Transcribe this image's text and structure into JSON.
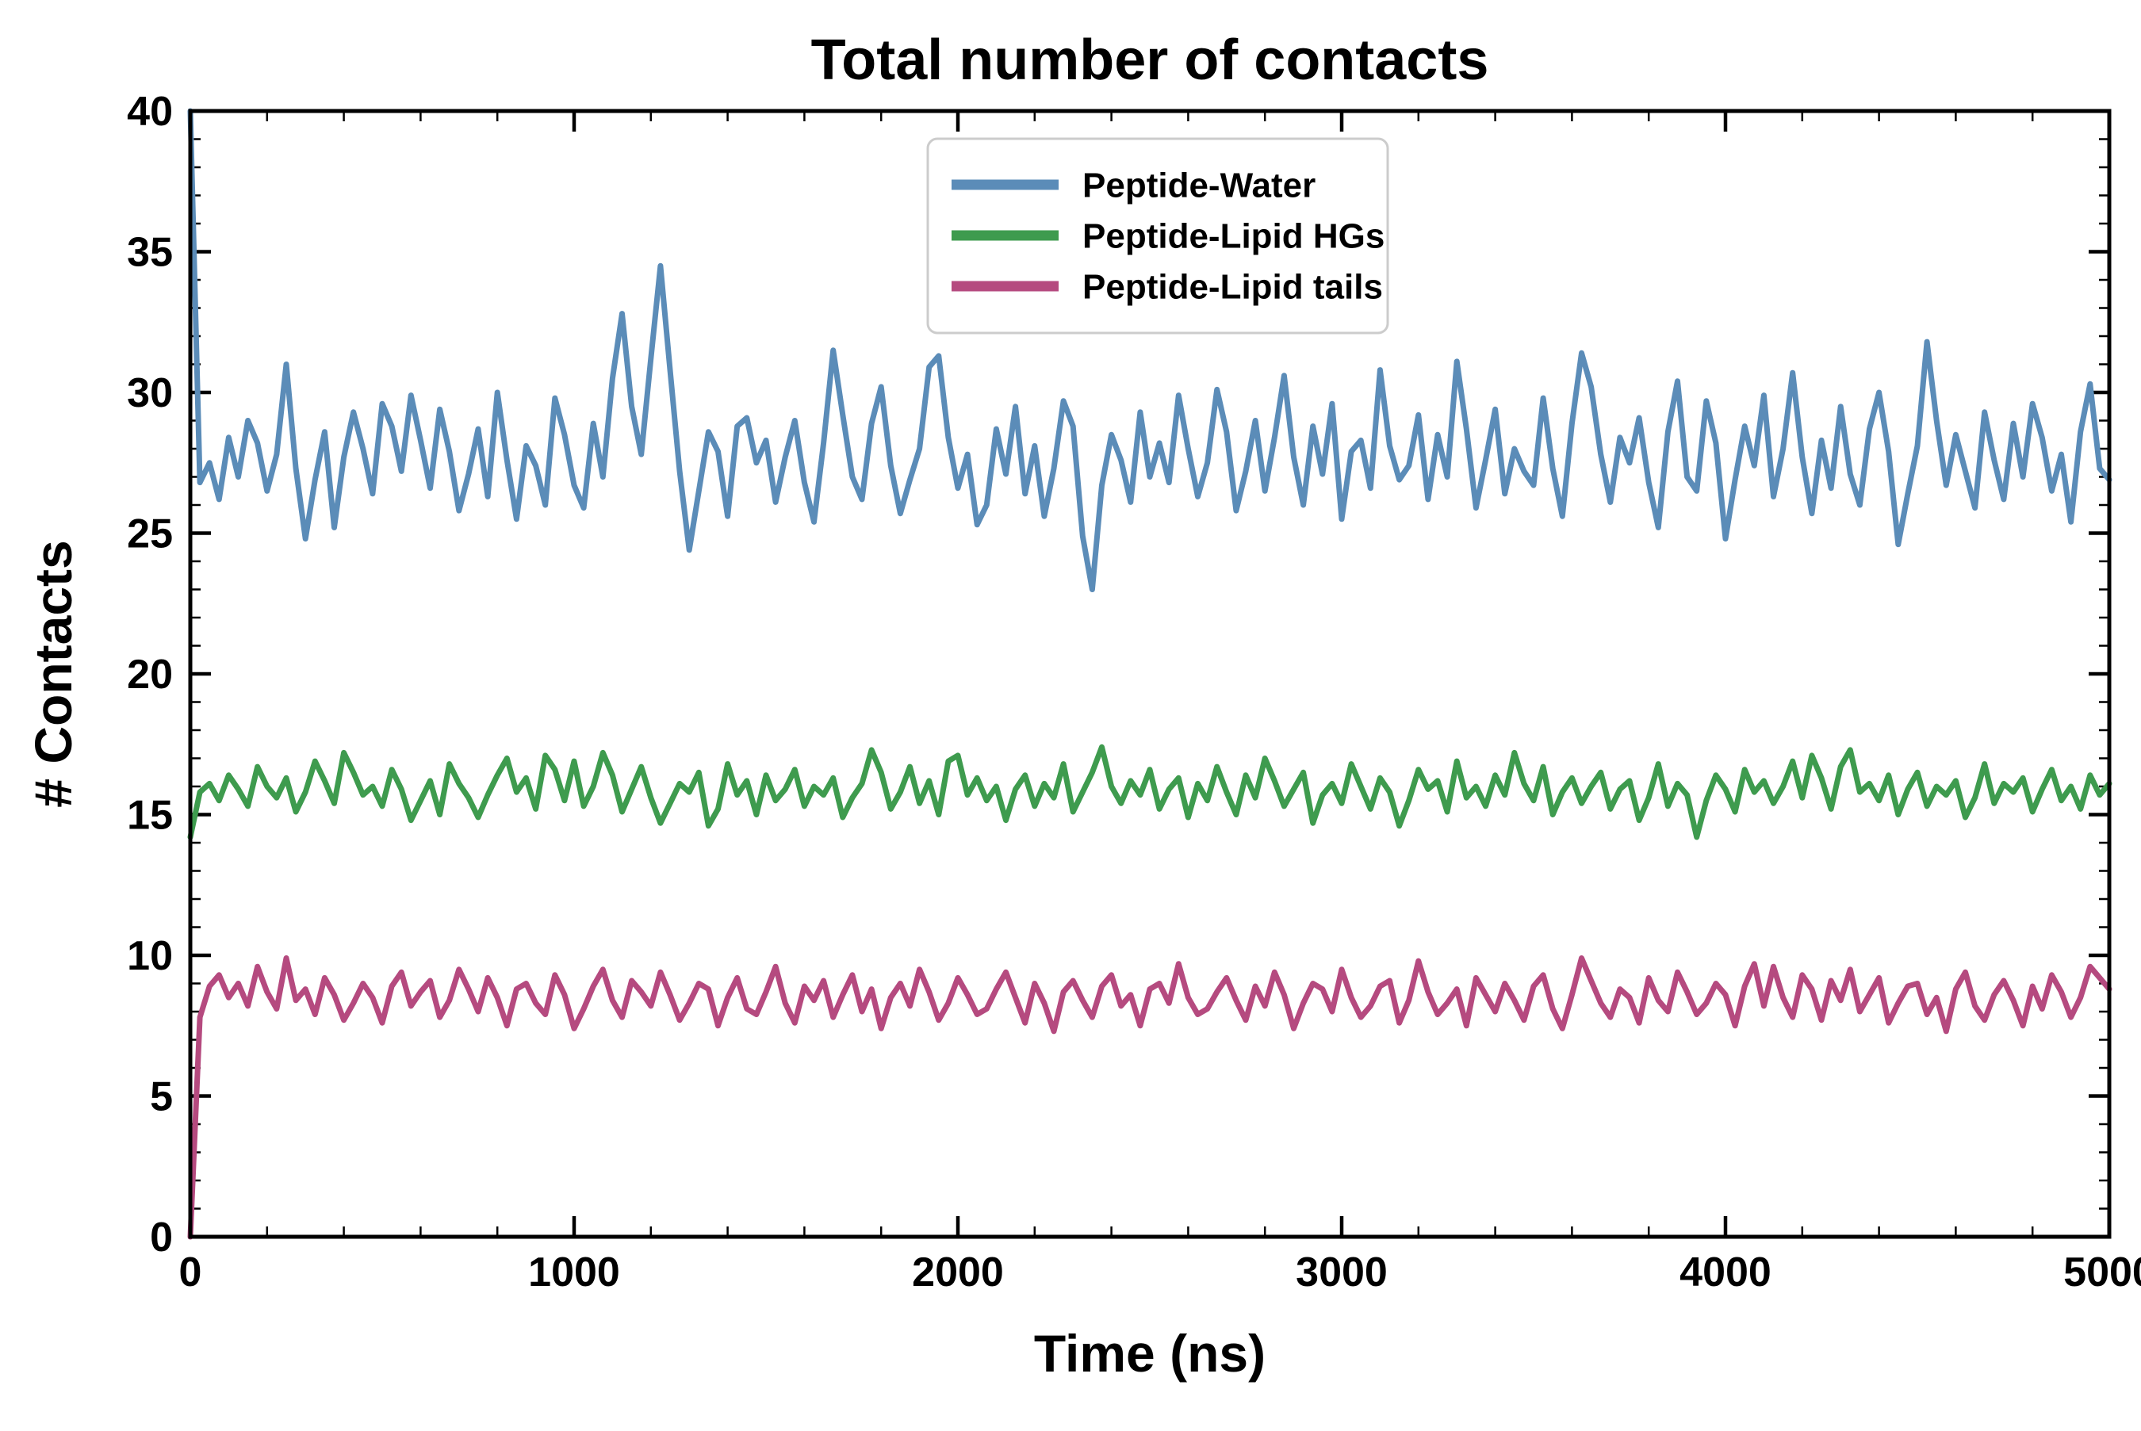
{
  "chart_data": {
    "type": "line",
    "title": "Total number of contacts",
    "xlabel": "Time (ns)",
    "ylabel": "# Contacts",
    "xlim": [
      0,
      5000
    ],
    "ylim": [
      0,
      40
    ],
    "x_major_ticks": [
      0,
      1000,
      2000,
      3000,
      4000,
      5000
    ],
    "y_major_ticks": [
      0,
      5,
      10,
      15,
      20,
      25,
      30,
      35,
      40
    ],
    "x_minor_step": 200,
    "y_minor_step": 1,
    "grid": false,
    "legend_position": "upper center",
    "x_step": 25,
    "series": [
      {
        "name": "Peptide-Water",
        "color": "#5b8cb8",
        "values": [
          40.0,
          26.8,
          27.5,
          26.2,
          28.4,
          27.0,
          29.0,
          28.2,
          26.5,
          27.8,
          31.0,
          27.3,
          24.8,
          26.9,
          28.6,
          25.2,
          27.7,
          29.3,
          28.0,
          26.4,
          29.6,
          28.8,
          27.2,
          29.9,
          28.3,
          26.6,
          29.4,
          27.9,
          25.8,
          27.1,
          28.7,
          26.3,
          30.0,
          27.6,
          25.5,
          28.1,
          27.4,
          26.0,
          29.8,
          28.5,
          26.7,
          25.9,
          28.9,
          27.0,
          30.5,
          32.8,
          29.5,
          27.8,
          31.2,
          34.5,
          30.8,
          27.2,
          24.4,
          26.5,
          28.6,
          27.9,
          25.6,
          28.8,
          29.1,
          27.5,
          28.3,
          26.1,
          27.7,
          29.0,
          26.8,
          25.4,
          28.2,
          31.5,
          29.2,
          27.0,
          26.2,
          28.9,
          30.2,
          27.4,
          25.7,
          26.9,
          28.0,
          30.9,
          31.3,
          28.4,
          26.6,
          27.8,
          25.3,
          26.0,
          28.7,
          27.1,
          29.5,
          26.4,
          28.1,
          25.6,
          27.3,
          29.7,
          28.8,
          24.9,
          23.0,
          26.7,
          28.5,
          27.6,
          26.1,
          29.3,
          27.0,
          28.2,
          26.8,
          29.9,
          28.0,
          26.3,
          27.5,
          30.1,
          28.6,
          25.8,
          27.2,
          29.0,
          26.5,
          28.4,
          30.6,
          27.7,
          26.0,
          28.8,
          27.1,
          29.6,
          25.5,
          27.9,
          28.3,
          26.6,
          30.8,
          28.1,
          26.9,
          27.4,
          29.2,
          26.2,
          28.5,
          27.0,
          31.1,
          28.7,
          25.9,
          27.6,
          29.4,
          26.4,
          28.0,
          27.2,
          26.7,
          29.8,
          27.3,
          25.6,
          28.9,
          31.4,
          30.2,
          27.8,
          26.1,
          28.4,
          27.5,
          29.1,
          26.8,
          25.2,
          28.6,
          30.4,
          27.0,
          26.5,
          29.7,
          28.2,
          24.8,
          26.9,
          28.8,
          27.4,
          29.9,
          26.3,
          28.0,
          30.7,
          27.7,
          25.7,
          28.3,
          26.6,
          29.5,
          27.1,
          26.0,
          28.7,
          30.0,
          27.9,
          24.6,
          26.4,
          28.1,
          31.8,
          29.0,
          26.7,
          28.5,
          27.2,
          25.9,
          29.3,
          27.6,
          26.2,
          28.9,
          27.0,
          29.6,
          28.4,
          26.5,
          27.8,
          25.4,
          28.6,
          30.3,
          27.3,
          26.9
        ]
      },
      {
        "name": "Peptide-Lipid HGs",
        "color": "#3e9b4e",
        "values": [
          14.2,
          15.8,
          16.1,
          15.5,
          16.4,
          15.9,
          15.3,
          16.7,
          16.0,
          15.6,
          16.3,
          15.1,
          15.8,
          16.9,
          16.2,
          15.4,
          17.2,
          16.5,
          15.7,
          16.0,
          15.3,
          16.6,
          15.9,
          14.8,
          15.5,
          16.2,
          15.0,
          16.8,
          16.1,
          15.6,
          14.9,
          15.7,
          16.4,
          17.0,
          15.8,
          16.3,
          15.2,
          17.1,
          16.6,
          15.5,
          16.9,
          15.3,
          16.0,
          17.2,
          16.4,
          15.1,
          15.9,
          16.7,
          15.6,
          14.7,
          15.4,
          16.1,
          15.8,
          16.5,
          14.6,
          15.2,
          16.8,
          15.7,
          16.2,
          15.0,
          16.4,
          15.5,
          15.9,
          16.6,
          15.3,
          16.0,
          15.7,
          16.3,
          14.9,
          15.6,
          16.1,
          17.3,
          16.5,
          15.2,
          15.8,
          16.7,
          15.4,
          16.2,
          15.0,
          16.9,
          17.1,
          15.7,
          16.3,
          15.5,
          16.0,
          14.8,
          15.9,
          16.4,
          15.3,
          16.1,
          15.6,
          16.8,
          15.1,
          15.8,
          16.5,
          17.4,
          16.0,
          15.4,
          16.2,
          15.7,
          16.6,
          15.2,
          15.9,
          16.3,
          14.9,
          16.1,
          15.5,
          16.7,
          15.8,
          15.0,
          16.4,
          15.6,
          17.0,
          16.2,
          15.3,
          15.9,
          16.5,
          14.7,
          15.7,
          16.1,
          15.4,
          16.8,
          16.0,
          15.2,
          16.3,
          15.8,
          14.6,
          15.5,
          16.6,
          15.9,
          16.2,
          15.1,
          16.9,
          15.6,
          16.0,
          15.3,
          16.4,
          15.7,
          17.2,
          16.1,
          15.5,
          16.7,
          15.0,
          15.8,
          16.3,
          15.4,
          16.0,
          16.5,
          15.2,
          15.9,
          16.2,
          14.8,
          15.6,
          16.8,
          15.3,
          16.1,
          15.7,
          14.2,
          15.5,
          16.4,
          15.9,
          15.1,
          16.6,
          15.8,
          16.2,
          15.4,
          16.0,
          16.9,
          15.6,
          17.1,
          16.3,
          15.2,
          16.7,
          17.3,
          15.8,
          16.1,
          15.5,
          16.4,
          15.0,
          15.9,
          16.5,
          15.3,
          16.0,
          15.7,
          16.2,
          14.9,
          15.6,
          16.8,
          15.4,
          16.1,
          15.8,
          16.3,
          15.1,
          15.9,
          16.6,
          15.5,
          16.0,
          15.2,
          16.4,
          15.7,
          16.1
        ]
      },
      {
        "name": "Peptide-Lipid tails",
        "color": "#b54a7f",
        "values": [
          0.0,
          7.8,
          8.9,
          9.3,
          8.5,
          9.0,
          8.2,
          9.6,
          8.7,
          8.1,
          9.9,
          8.4,
          8.8,
          7.9,
          9.2,
          8.6,
          7.7,
          8.3,
          9.0,
          8.5,
          7.6,
          8.9,
          9.4,
          8.2,
          8.7,
          9.1,
          7.8,
          8.4,
          9.5,
          8.8,
          8.0,
          9.2,
          8.5,
          7.5,
          8.8,
          9.0,
          8.3,
          7.9,
          9.3,
          8.6,
          7.4,
          8.1,
          8.9,
          9.5,
          8.4,
          7.8,
          9.1,
          8.7,
          8.2,
          9.4,
          8.6,
          7.7,
          8.3,
          9.0,
          8.8,
          7.5,
          8.5,
          9.2,
          8.1,
          7.9,
          8.7,
          9.6,
          8.3,
          7.6,
          8.9,
          8.4,
          9.1,
          7.8,
          8.6,
          9.3,
          8.0,
          8.8,
          7.4,
          8.5,
          9.0,
          8.2,
          9.5,
          8.7,
          7.7,
          8.3,
          9.2,
          8.6,
          7.9,
          8.1,
          8.8,
          9.4,
          8.5,
          7.6,
          9.0,
          8.3,
          7.3,
          8.7,
          9.1,
          8.4,
          7.8,
          8.9,
          9.3,
          8.2,
          8.6,
          7.5,
          8.8,
          9.0,
          8.3,
          9.7,
          8.5,
          7.9,
          8.1,
          8.7,
          9.2,
          8.4,
          7.7,
          8.9,
          8.2,
          9.4,
          8.6,
          7.4,
          8.3,
          9.0,
          8.8,
          8.0,
          9.5,
          8.5,
          7.8,
          8.2,
          8.9,
          9.1,
          7.6,
          8.4,
          9.8,
          8.7,
          7.9,
          8.3,
          8.8,
          7.5,
          9.2,
          8.6,
          8.0,
          9.0,
          8.4,
          7.7,
          8.9,
          9.3,
          8.1,
          7.4,
          8.6,
          9.9,
          9.1,
          8.3,
          7.8,
          8.8,
          8.5,
          7.6,
          9.2,
          8.4,
          8.0,
          9.4,
          8.7,
          7.9,
          8.3,
          9.0,
          8.6,
          7.5,
          8.9,
          9.7,
          8.2,
          9.6,
          8.5,
          7.8,
          9.3,
          8.8,
          7.7,
          9.1,
          8.4,
          9.5,
          8.0,
          8.6,
          9.2,
          7.6,
          8.3,
          8.9,
          9.0,
          7.9,
          8.5,
          7.3,
          8.8,
          9.4,
          8.2,
          7.7,
          8.6,
          9.1,
          8.4,
          7.5,
          8.9,
          8.1,
          9.3,
          8.7,
          7.8,
          8.5,
          9.6,
          9.2,
          8.8
        ]
      }
    ]
  }
}
